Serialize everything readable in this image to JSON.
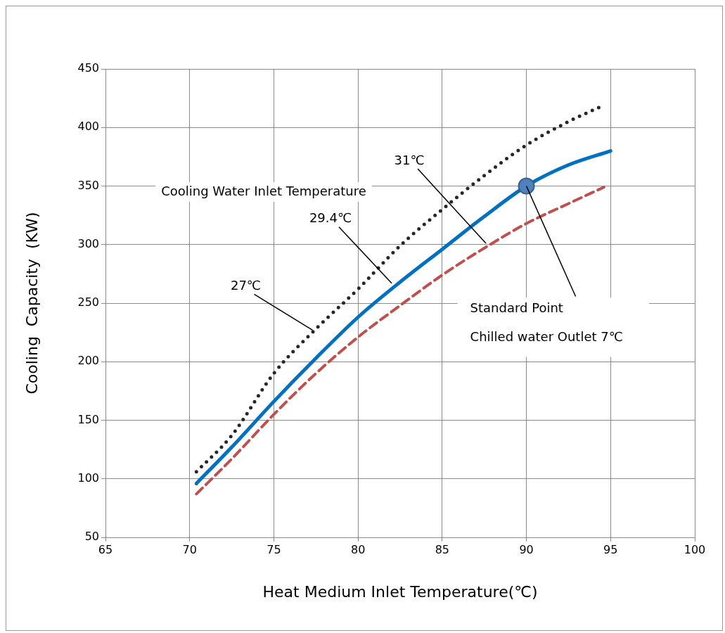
{
  "chart_data": {
    "type": "line",
    "xlabel": "Heat Medium Inlet Temperature(℃)",
    "ylabel": "Cooling  Capacity  (KW)",
    "xlim": [
      65,
      100
    ],
    "xticks": [
      65,
      70,
      75,
      80,
      85,
      90,
      95,
      100
    ],
    "ylim": [
      50,
      450
    ],
    "yticks": [
      50,
      100,
      150,
      200,
      250,
      300,
      350,
      400,
      450
    ],
    "grid": true,
    "legend": false,
    "series": [
      {
        "color": "#262626",
        "line_style": "dotted",
        "marker": "none",
        "x": [
          70.4,
          72.5,
          75,
          77.5,
          80,
          82.5,
          85,
          87.5,
          90,
          92.5,
          94.6
        ],
        "values": [
          106,
          137,
          190,
          228,
          262,
          299,
          330,
          359,
          385,
          405,
          419
        ]
      },
      {
        "color": "#0070c0",
        "line_style": "solid",
        "marker": "none",
        "x": [
          70.4,
          72.5,
          75,
          77.5,
          80,
          82.5,
          85,
          87.5,
          90,
          92.5,
          95
        ],
        "values": [
          96,
          127,
          166,
          203,
          238,
          268,
          296,
          324,
          350,
          368,
          380
        ]
      },
      {
        "color": "#c0504d",
        "line_style": "dashed",
        "marker": "none",
        "x": [
          70.4,
          72.5,
          75,
          77.5,
          80,
          82.5,
          85,
          87.5,
          90,
          92.5,
          94.6
        ],
        "values": [
          87,
          117,
          155,
          190,
          221,
          248,
          274,
          297,
          318,
          335,
          349
        ]
      },
      {
        "type": "scatter",
        "color": "#4f81bd",
        "marker": "circle",
        "x": [
          90
        ],
        "values": [
          350
        ]
      }
    ],
    "annotations": [
      "Cooling Water Inlet Temperature",
      {
        "text": "27℃",
        "x": 77.3,
        "y": 227
      },
      {
        "text": "29.4℃",
        "x": 82,
        "y": 267
      },
      {
        "text": "31℃",
        "x": 87.6,
        "y": 301
      },
      {
        "text": "Standard Point\nChilled water Outlet 7℃",
        "x": 90,
        "y": 350
      }
    ]
  }
}
